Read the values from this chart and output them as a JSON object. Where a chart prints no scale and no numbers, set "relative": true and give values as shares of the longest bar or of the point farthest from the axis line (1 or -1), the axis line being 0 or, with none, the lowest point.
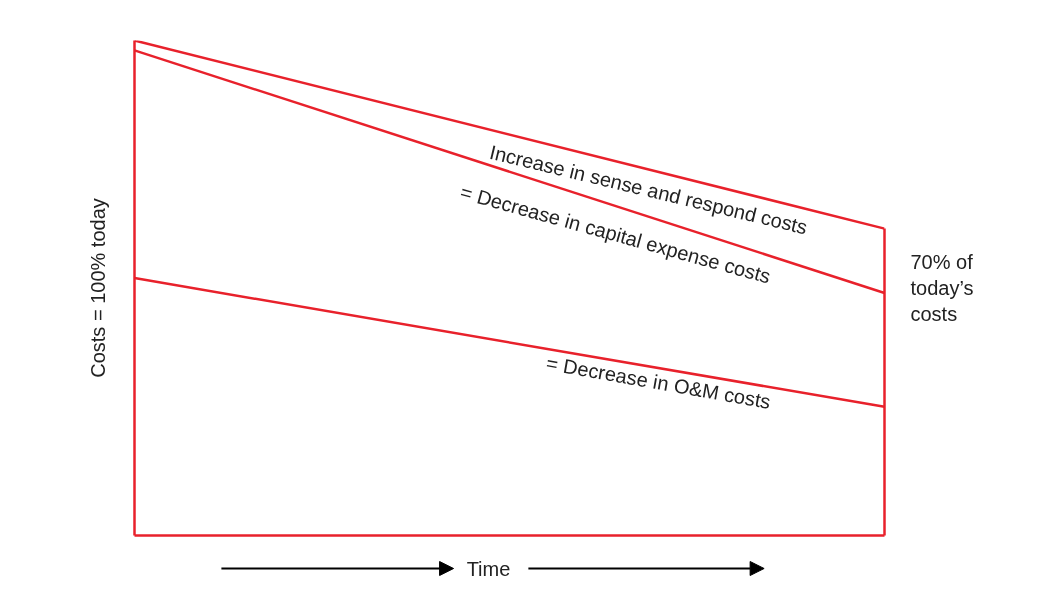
{
  "chart_data": {
    "type": "line",
    "relative": true,
    "categories": [
      null,
      null
    ],
    "xlabel": "Time",
    "ylabel": "Costs = 100% today",
    "series": [
      {
        "color": "#e8212b",
        "values": [
          1,
          0.62
        ]
      },
      {
        "color": "#e8212b",
        "values": [
          0.98,
          0.49
        ]
      },
      {
        "color": "#e8212b",
        "values": [
          0.52,
          0.26
        ]
      }
    ],
    "annotations": [
      "Increase in sense and respond costs",
      "= Decrease in capital expense costs",
      "= Decrease in O&M costs",
      "70% of today’s costs"
    ]
  }
}
